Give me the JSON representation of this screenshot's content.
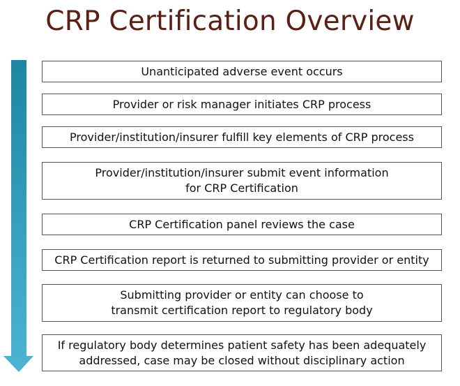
{
  "title": "CRP Certification Overview",
  "colors": {
    "title": "#5b2015",
    "arrow_top": "#1d86a3",
    "arrow_bottom": "#4fb4d4"
  },
  "steps": [
    {
      "text": "Unanticipated adverse event occurs"
    },
    {
      "text": "Provider or risk manager initiates CRP process"
    },
    {
      "text": "Provider/institution/insurer fulfill key elements of CRP process"
    },
    {
      "text": "Provider/institution/insurer submit event information\nfor CRP Certification"
    },
    {
      "text": "CRP Certification panel reviews the case"
    },
    {
      "text": "CRP Certification report is returned to submitting provider or entity"
    },
    {
      "text": "Submitting provider or entity can choose to\ntransmit certification report to regulatory body"
    },
    {
      "text": "If regulatory body determines patient safety has been adequately\naddressed, case may be closed without disciplinary action"
    }
  ]
}
